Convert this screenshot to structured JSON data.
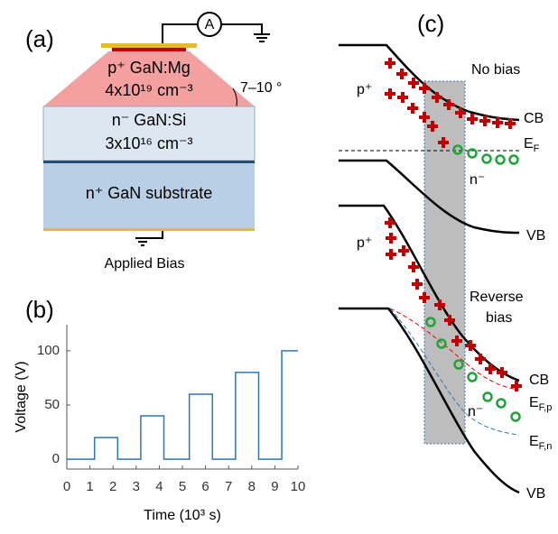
{
  "panel_a": {
    "label": "(a)",
    "ammeter": "A",
    "p_layer": "p⁺ GaN:Mg",
    "p_doping": "4x10¹⁹ cm⁻³",
    "angle": "7–10 °",
    "n_layer": "n⁻ GaN:Si",
    "n_doping": "3x10¹⁶ cm⁻³",
    "substrate": "n⁺ GaN substrate",
    "bias": "Applied Bias"
  },
  "panel_b": {
    "label": "(b)"
  },
  "panel_c": {
    "label": "(c)",
    "no_bias": "No bias",
    "p_top": "p⁺",
    "cb_top": "CB",
    "ef_top": {
      "main": "E",
      "sub": "F"
    },
    "n_top": "n⁻",
    "vb_top": "VB",
    "p_bottom": "p⁺",
    "reverse": "Reverse",
    "bias": "bias",
    "cb_bottom": "CB",
    "efp": {
      "main": "E",
      "sub": "F,p"
    },
    "n_bottom": "n⁻",
    "efn": {
      "main": "E",
      "sub": "F,n"
    },
    "vb_bottom": "VB"
  },
  "chart_data": {
    "type": "line",
    "x_label": "Time (10³ s)",
    "y_label": "Voltage (V)",
    "x": [
      0,
      1.2,
      1.2,
      2.2,
      2.2,
      3.2,
      3.2,
      4.2,
      4.2,
      5.3,
      5.3,
      6.3,
      6.3,
      7.3,
      7.3,
      8.3,
      8.3,
      9.3,
      9.3,
      10
    ],
    "values": [
      0,
      0,
      20,
      20,
      0,
      0,
      40,
      40,
      0,
      0,
      60,
      60,
      0,
      0,
      80,
      80,
      0,
      0,
      100,
      100
    ],
    "color": "#2e75b6",
    "xlim": [
      0,
      10
    ],
    "ylim": [
      -9,
      124
    ],
    "xticks": [
      0,
      1,
      2,
      3,
      4,
      5,
      6,
      7,
      8,
      9,
      10
    ],
    "yticks": [
      0,
      50,
      100
    ]
  }
}
